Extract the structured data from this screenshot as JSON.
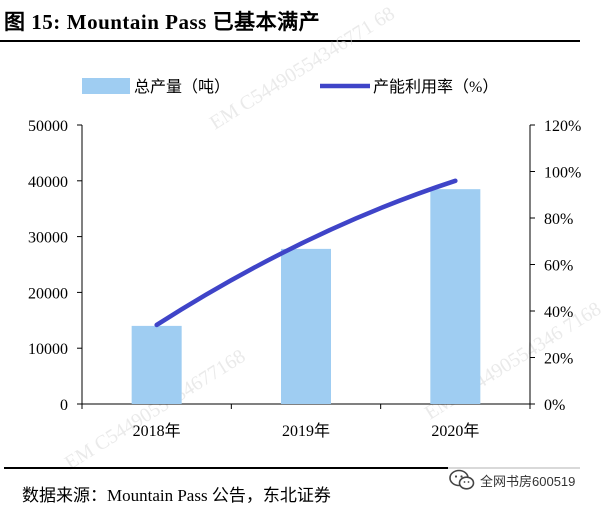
{
  "figure": {
    "label": "图 15:",
    "title": "Mountain Pass 已基本满产",
    "source": "数据来源：Mountain Pass 公告，东北证券"
  },
  "watermarks": [
    "EM C54490554346771 68",
    "EM C5449055434677168",
    "EM C54490554346 7168"
  ],
  "wechat_badge": {
    "text": "全网书房600519",
    "icon": "wechat-icon"
  },
  "colors": {
    "bar": "#9fcdf2",
    "line": "#3f44c8",
    "axis": "#000000",
    "watermark": "#d9d9d9"
  },
  "chart_data": {
    "type": "bar",
    "categories": [
      "2018年",
      "2019年",
      "2020年"
    ],
    "series": [
      {
        "name": "总产量（吨）",
        "type": "bar",
        "axis": "left",
        "values": [
          14000,
          27800,
          38500
        ]
      },
      {
        "name": "产能利用率（%）",
        "type": "line",
        "axis": "right",
        "values": [
          0.34,
          0.7,
          0.96
        ]
      }
    ],
    "y_left": {
      "min": 0,
      "max": 50000,
      "ticks": [
        "0",
        "10000",
        "20000",
        "30000",
        "40000",
        "50000"
      ]
    },
    "y_right": {
      "min": 0,
      "max": 1.2,
      "ticks": [
        "0%",
        "20%",
        "40%",
        "60%",
        "80%",
        "100%",
        "120%"
      ]
    },
    "legend_position": "top",
    "grid": false
  }
}
